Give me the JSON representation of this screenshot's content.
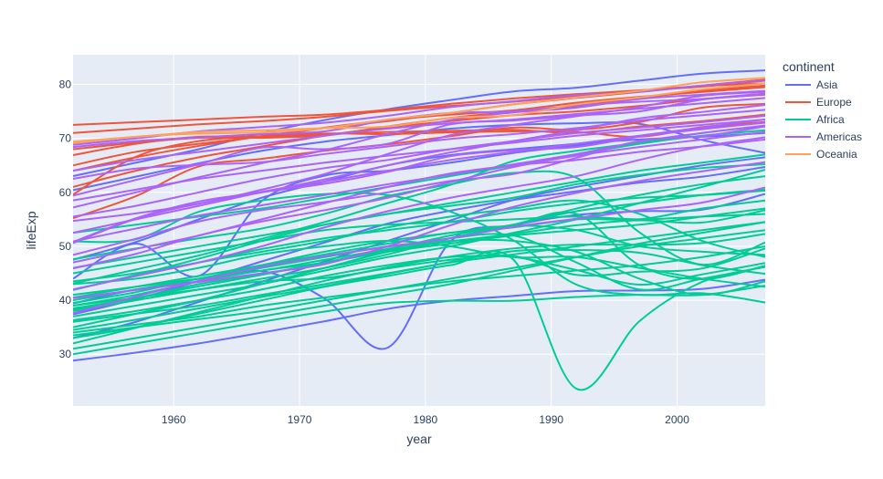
{
  "chart_data": {
    "type": "line",
    "xlabel": "year",
    "ylabel": "lifeExp",
    "xlim": [
      1952,
      2007
    ],
    "ylim": [
      20.4,
      85.5
    ],
    "x_ticks": [
      1960,
      1970,
      1980,
      1990,
      2000
    ],
    "y_ticks": [
      30,
      40,
      50,
      60,
      70,
      80
    ],
    "grid": true,
    "line_shape": "spline",
    "legend": {
      "title": "continent",
      "placement": "right",
      "items": [
        {
          "label": "Asia",
          "color": "#636efa"
        },
        {
          "label": "Europe",
          "color": "#EF553B"
        },
        {
          "label": "Africa",
          "color": "#00cc96"
        },
        {
          "label": "Americas",
          "color": "#ab63fa"
        },
        {
          "label": "Oceania",
          "color": "#FFA15A"
        }
      ]
    },
    "x": [
      1952,
      1957,
      1962,
      1967,
      1972,
      1977,
      1982,
      1987,
      1992,
      1997,
      2002,
      2007
    ],
    "series": [
      {
        "continent": "Asia",
        "values": [
          28.8,
          30.3,
          32.0,
          34.0,
          36.1,
          38.4,
          39.9,
          40.8,
          41.7,
          41.8,
          42.1,
          43.8
        ]
      },
      {
        "continent": "Asia",
        "values": [
          39.4,
          42.0,
          43.5,
          45.4,
          40.3,
          31.2,
          50.9,
          53.9,
          55.8,
          56.5,
          56.8,
          59.7
        ]
      },
      {
        "continent": "Asia",
        "values": [
          63.0,
          65.5,
          68.0,
          71.0,
          73.4,
          75.4,
          77.1,
          78.7,
          79.4,
          80.7,
          82.0,
          82.6
        ]
      },
      {
        "continent": "Asia",
        "values": [
          44.0,
          50.5,
          44.5,
          58.4,
          63.1,
          64.0,
          65.5,
          67.3,
          68.7,
          70.4,
          72.0,
          73.0
        ]
      },
      {
        "continent": "Asia",
        "values": [
          37.4,
          40.2,
          43.6,
          47.2,
          50.7,
          54.2,
          56.6,
          58.6,
          60.2,
          61.8,
          62.9,
          64.7
        ]
      },
      {
        "continent": "Asia",
        "values": [
          47.5,
          50.8,
          55.0,
          59.0,
          62.0,
          65.0,
          66.9,
          68.0,
          69.0,
          69.8,
          70.3,
          71.0
        ]
      },
      {
        "continent": "Asia",
        "values": [
          60.4,
          62.9,
          65.4,
          67.7,
          69.4,
          70.6,
          71.8,
          72.5,
          72.8,
          72.7,
          69.7,
          67.3
        ]
      },
      {
        "continent": "Asia",
        "values": [
          33.0,
          36.0,
          39.7,
          43.4,
          47.2,
          51.0,
          54.8,
          58.6,
          61.0,
          63.0,
          65.0,
          66.5
        ]
      },
      {
        "continent": "Europe",
        "values": [
          55.2,
          59.3,
          64.8,
          66.2,
          67.7,
          68.9,
          70.4,
          72.0,
          71.6,
          73.0,
          75.7,
          76.4
        ]
      },
      {
        "continent": "Europe",
        "values": [
          68.0,
          69.2,
          70.1,
          70.1,
          70.6,
          72.2,
          73.8,
          74.9,
          76.0,
          77.5,
          78.8,
          79.8
        ]
      },
      {
        "continent": "Europe",
        "values": [
          59.6,
          66.6,
          69.5,
          70.4,
          70.9,
          70.8,
          71.1,
          71.3,
          71.2,
          70.3,
          72.1,
          73.0
        ]
      },
      {
        "continent": "Europe",
        "values": [
          72.5,
          73.0,
          73.5,
          74.0,
          74.4,
          75.3,
          76.4,
          77.4,
          78.2,
          78.9,
          79.7,
          80.2
        ]
      },
      {
        "continent": "Europe",
        "values": [
          64.0,
          66.5,
          68.6,
          70.4,
          72.0,
          73.4,
          74.4,
          75.2,
          76.6,
          77.7,
          78.6,
          79.5
        ]
      },
      {
        "continent": "Europe",
        "values": [
          66.9,
          69.0,
          70.3,
          70.3,
          70.8,
          71.2,
          71.4,
          71.6,
          71.0,
          72.2,
          73.2,
          74.4
        ]
      },
      {
        "continent": "Europe",
        "values": [
          65.0,
          67.5,
          69.0,
          70.4,
          71.9,
          73.2,
          74.7,
          76.3,
          77.5,
          78.6,
          79.8,
          80.9
        ]
      },
      {
        "continent": "Europe",
        "values": [
          61.0,
          64.0,
          66.5,
          68.5,
          70.5,
          72.0,
          73.2,
          74.3,
          75.0,
          76.0,
          77.3,
          78.1
        ]
      },
      {
        "continent": "Europe",
        "values": [
          71.0,
          71.8,
          72.6,
          73.2,
          74.0,
          75.1,
          76.0,
          76.8,
          77.8,
          78.8,
          79.6,
          80.7
        ]
      },
      {
        "continent": "Africa",
        "values": [
          43.1,
          45.7,
          48.3,
          51.4,
          54.5,
          58.0,
          61.4,
          65.8,
          67.7,
          69.2,
          71.0,
          72.3
        ]
      },
      {
        "continent": "Africa",
        "values": [
          30.0,
          32.0,
          34.0,
          36.0,
          37.9,
          39.5,
          39.9,
          39.9,
          40.6,
          41.0,
          41.0,
          42.7
        ]
      },
      {
        "continent": "Africa",
        "values": [
          38.2,
          40.4,
          42.6,
          44.7,
          47.0,
          49.2,
          50.9,
          52.3,
          53.9,
          54.8,
          54.4,
          56.7
        ]
      },
      {
        "continent": "Africa",
        "values": [
          47.6,
          49.6,
          51.5,
          53.3,
          56.0,
          59.3,
          61.5,
          63.6,
          62.7,
          52.6,
          46.6,
          50.7
        ]
      },
      {
        "continent": "Africa",
        "values": [
          32.0,
          34.9,
          37.8,
          40.7,
          43.6,
          46.1,
          48.1,
          49.6,
          50.3,
          50.3,
          50.6,
          52.3
        ]
      },
      {
        "continent": "Africa",
        "values": [
          39.0,
          40.5,
          42.0,
          43.5,
          44.1,
          45.9,
          47.5,
          48.2,
          44.7,
          45.3,
          45.9,
          49.6
        ]
      },
      {
        "continent": "Africa",
        "values": [
          38.5,
          40.4,
          43.0,
          44.8,
          47.0,
          49.4,
          52.0,
          54.0,
          56.0,
          46.5,
          43.9,
          46.4
        ]
      },
      {
        "continent": "Africa",
        "values": [
          41.9,
          44.7,
          47.7,
          51.0,
          54.0,
          56.0,
          57.5,
          59.0,
          61.5,
          63.2,
          64.5,
          65.2
        ]
      },
      {
        "continent": "Africa",
        "values": [
          34.5,
          36.4,
          38.5,
          40.6,
          42.6,
          44.9,
          47.1,
          49.1,
          49.3,
          48.8,
          46.5,
          44.9
        ]
      },
      {
        "continent": "Africa",
        "values": [
          36.3,
          38.0,
          40.0,
          42.0,
          44.5,
          46.5,
          48.0,
          48.0,
          45.6,
          42.9,
          44.8,
          46.9
        ]
      },
      {
        "continent": "Africa",
        "values": [
          50.9,
          51.3,
          56.4,
          58.5,
          59.7,
          59.5,
          56.4,
          51.1,
          42.9,
          41.0,
          41.3,
          39.6
        ]
      },
      {
        "continent": "Africa",
        "values": [
          40.0,
          42.0,
          44.0,
          46.5,
          49.0,
          51.0,
          52.5,
          53.8,
          53.0,
          50.0,
          49.0,
          48.4
        ]
      },
      {
        "continent": "Africa",
        "values": [
          41.0,
          42.5,
          44.0,
          45.5,
          47.5,
          49.5,
          51.5,
          52.0,
          47.0,
          42.0,
          44.0,
          46.2
        ]
      },
      {
        "continent": "Africa",
        "values": [
          35.0,
          37.5,
          40.0,
          43.0,
          46.0,
          49.0,
          51.5,
          54.0,
          57.0,
          59.5,
          61.5,
          63.0
        ]
      },
      {
        "continent": "Africa",
        "values": [
          37.0,
          39.0,
          41.0,
          43.0,
          45.5,
          48.0,
          50.0,
          52.5,
          55.0,
          58.0,
          61.0,
          64.2
        ]
      },
      {
        "continent": "Africa",
        "values": [
          33.5,
          35.0,
          36.5,
          38.0,
          40.0,
          42.0,
          44.0,
          46.0,
          48.0,
          50.0,
          51.5,
          53.0
        ]
      },
      {
        "continent": "Africa",
        "values": [
          43.5,
          45.0,
          47.0,
          49.5,
          51.5,
          53.0,
          54.5,
          56.5,
          58.0,
          59.0,
          59.5,
          60.3
        ]
      },
      {
        "continent": "Africa",
        "values": [
          42.0,
          44.5,
          47.0,
          49.0,
          51.0,
          53.5,
          55.5,
          57.0,
          58.5,
          56.0,
          51.0,
          48.0
        ]
      },
      {
        "continent": "Africa",
        "values": [
          39.5,
          41.5,
          44.0,
          46.0,
          48.0,
          50.0,
          51.0,
          51.0,
          49.0,
          44.0,
          41.0,
          43.5
        ]
      },
      {
        "continent": "Africa",
        "values": [
          31.0,
          33.0,
          35.0,
          37.0,
          39.0,
          41.0,
          43.0,
          45.5,
          48.0,
          50.5,
          52.5,
          54.5
        ]
      },
      {
        "continent": "Africa",
        "values": [
          45.0,
          47.0,
          49.0,
          51.0,
          53.0,
          54.0,
          54.5,
          55.0,
          55.5,
          55.0,
          55.5,
          56.0
        ]
      },
      {
        "continent": "Africa",
        "values": [
          36.0,
          37.5,
          39.0,
          41.0,
          43.0,
          45.0,
          47.0,
          48.5,
          50.0,
          51.5,
          53.0,
          54.5
        ]
      },
      {
        "continent": "Africa",
        "values": [
          40.5,
          42.5,
          44.5,
          46.5,
          48.5,
          50.5,
          52.5,
          53.5,
          55.0,
          55.0,
          57.0,
          58.5
        ]
      },
      {
        "continent": "Africa",
        "values": [
          52.5,
          54.0,
          55.5,
          57.0,
          59.0,
          61.0,
          63.0,
          65.0,
          67.0,
          69.0,
          70.5,
          71.5
        ]
      },
      {
        "continent": "Africa",
        "values": [
          38.0,
          40.0,
          42.0,
          44.0,
          46.0,
          48.5,
          51.5,
          54.0,
          56.5,
          58.0,
          59.5,
          60.5
        ]
      },
      {
        "continent": "Africa",
        "values": [
          34.0,
          35.5,
          37.0,
          39.0,
          40.5,
          42.0,
          43.5,
          44.5,
          45.5,
          46.5,
          48.0,
          50.0
        ]
      },
      {
        "continent": "Africa",
        "values": [
          43.0,
          44.0,
          46.0,
          48.5,
          50.0,
          51.0,
          50.0,
          48.0,
          48.0,
          46.0,
          44.0,
          42.5
        ]
      },
      {
        "continent": "Africa",
        "values": [
          33.0,
          35.0,
          37.5,
          40.0,
          42.5,
          44.5,
          46.5,
          47.5,
          23.6,
          36.1,
          43.4,
          46.2
        ]
      },
      {
        "continent": "Africa",
        "values": [
          39.0,
          41.0,
          43.5,
          45.5,
          47.0,
          49.0,
          50.5,
          52.0,
          53.0,
          54.0,
          55.5,
          57.0
        ]
      },
      {
        "continent": "Africa",
        "values": [
          46.0,
          48.0,
          50.0,
          52.0,
          54.0,
          56.0,
          58.0,
          60.0,
          62.0,
          64.0,
          65.5,
          67.0
        ]
      },
      {
        "continent": "Americas",
        "values": [
          62.5,
          64.4,
          65.1,
          65.6,
          67.1,
          68.5,
          69.9,
          70.8,
          71.9,
          73.3,
          74.3,
          75.3
        ]
      },
      {
        "continent": "Americas",
        "values": [
          40.4,
          41.9,
          43.4,
          45.0,
          46.7,
          50.0,
          53.9,
          57.3,
          59.9,
          62.1,
          63.9,
          65.6
        ]
      },
      {
        "continent": "Americas",
        "values": [
          50.9,
          53.3,
          55.7,
          57.6,
          59.5,
          61.5,
          63.3,
          65.2,
          67.1,
          69.4,
          71.0,
          72.4
        ]
      },
      {
        "continent": "Americas",
        "values": [
          68.8,
          70.0,
          71.3,
          72.1,
          72.9,
          74.2,
          75.8,
          76.9,
          78.0,
          78.6,
          79.8,
          80.7
        ]
      },
      {
        "continent": "Americas",
        "values": [
          54.7,
          56.1,
          57.9,
          60.5,
          63.4,
          67.1,
          70.6,
          72.5,
          74.1,
          75.8,
          77.9,
          78.6
        ]
      },
      {
        "continent": "Americas",
        "values": [
          50.6,
          55.1,
          57.9,
          60.0,
          61.6,
          63.8,
          66.7,
          67.8,
          68.4,
          70.3,
          71.7,
          72.9
        ]
      },
      {
        "continent": "Americas",
        "values": [
          57.2,
          60.0,
          62.8,
          65.4,
          67.8,
          70.8,
          73.4,
          74.8,
          75.7,
          77.3,
          78.1,
          78.8
        ]
      },
      {
        "continent": "Americas",
        "values": [
          59.4,
          62.3,
          65.2,
          68.3,
          68.0,
          69.0,
          72.6,
          73.3,
          74.2,
          75.0,
          77.2,
          78.3
        ]
      },
      {
        "continent": "Americas",
        "values": [
          45.9,
          48.6,
          52.0,
          54.6,
          56.7,
          59.0,
          61.9,
          64.7,
          66.8,
          68.4,
          69.8,
          71.2
        ]
      },
      {
        "continent": "Americas",
        "values": [
          48.4,
          51.4,
          54.6,
          56.7,
          58.2,
          60.0,
          62.1,
          63.4,
          66.4,
          69.5,
          70.4,
          72.2
        ]
      },
      {
        "continent": "Americas",
        "values": [
          37.6,
          40.7,
          43.6,
          46.2,
          48.2,
          49.9,
          51.5,
          53.6,
          55.1,
          56.7,
          58.1,
          60.9
        ]
      },
      {
        "continent": "Americas",
        "values": [
          50.8,
          55.2,
          58.3,
          60.1,
          62.4,
          65.0,
          67.4,
          69.5,
          71.5,
          73.7,
          74.9,
          76.2
        ]
      },
      {
        "continent": "Americas",
        "values": [
          68.4,
          69.5,
          70.2,
          70.8,
          71.3,
          73.4,
          74.7,
          75.0,
          76.1,
          76.8,
          77.3,
          78.2
        ]
      },
      {
        "continent": "Americas",
        "values": [
          55.5,
          57.5,
          60.0,
          62.5,
          64.5,
          66.0,
          68.0,
          69.5,
          71.0,
          72.0,
          73.0,
          74.2
        ]
      },
      {
        "continent": "Americas",
        "values": [
          42.0,
          44.5,
          47.0,
          50.0,
          53.5,
          56.5,
          59.0,
          61.0,
          63.0,
          66.0,
          68.5,
          70.2
        ]
      },
      {
        "continent": "Americas",
        "values": [
          47.0,
          49.5,
          52.0,
          55.0,
          58.0,
          61.0,
          63.5,
          65.0,
          66.0,
          67.5,
          68.5,
          69.8
        ]
      },
      {
        "continent": "Americas",
        "values": [
          64.0,
          66.0,
          67.5,
          69.0,
          70.5,
          71.8,
          72.8,
          73.5,
          74.5,
          75.5,
          76.5,
          77.5
        ]
      },
      {
        "continent": "Americas",
        "values": [
          58.5,
          60.5,
          62.5,
          64.0,
          65.5,
          66.8,
          68.0,
          69.2,
          70.5,
          71.5,
          72.5,
          73.5
        ]
      },
      {
        "continent": "Americas",
        "values": [
          52.5,
          55.0,
          57.5,
          60.0,
          62.0,
          64.0,
          66.0,
          67.5,
          69.0,
          70.5,
          72.0,
          73.5
        ]
      },
      {
        "continent": "Oceania",
        "values": [
          69.1,
          70.3,
          70.9,
          71.1,
          71.9,
          73.5,
          74.7,
          76.3,
          77.6,
          78.8,
          80.4,
          81.2
        ]
      },
      {
        "continent": "Oceania",
        "values": [
          69.4,
          70.3,
          71.2,
          71.5,
          71.9,
          72.2,
          73.8,
          74.3,
          76.3,
          77.6,
          79.1,
          80.2
        ]
      }
    ]
  }
}
